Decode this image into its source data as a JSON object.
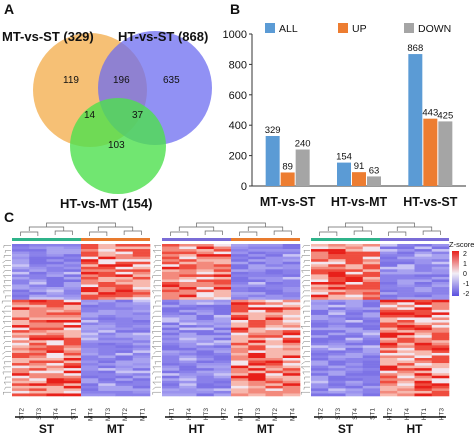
{
  "panels": {
    "a": "A",
    "b": "B",
    "c": "C"
  },
  "venn": {
    "sets": [
      {
        "label": "MT-vs-ST (329)",
        "color": "#f5b55d"
      },
      {
        "label": "HT-vs-ST (868)",
        "color": "#6c6cf0"
      },
      {
        "label": "HT-vs-MT (154)",
        "color": "#52e052"
      }
    ],
    "regions": {
      "mt_only": "119",
      "mt_ht": "196",
      "ht_only": "635",
      "mt_mt2": "14",
      "ht_mt2": "37",
      "mt2_only": "103"
    }
  },
  "chart_data": {
    "type": "bar",
    "categories": [
      "MT-vs-ST",
      "HT-vs-MT",
      "HT-vs-ST"
    ],
    "series": [
      {
        "name": "ALL",
        "color": "#5b9bd5",
        "values": [
          329,
          154,
          868
        ]
      },
      {
        "name": "UP",
        "color": "#ed7d31",
        "values": [
          89,
          91,
          443
        ]
      },
      {
        "name": "DOWN",
        "color": "#a5a5a5",
        "values": [
          240,
          63,
          425
        ]
      }
    ],
    "data_labels": [
      [
        "329",
        "89",
        "240"
      ],
      [
        "154",
        "91",
        "63"
      ],
      [
        "868",
        "443",
        "425"
      ]
    ],
    "ylim": [
      0,
      1000
    ],
    "yticks": [
      "0",
      "200",
      "400",
      "600",
      "800",
      "1000"
    ],
    "ytick_values": [
      0,
      200,
      400,
      600,
      800,
      1000
    ],
    "legend_position": "top",
    "grid": false
  },
  "heatmaps": {
    "legend_title": "Z-score",
    "legend_ticks": [
      "2",
      "1",
      "0",
      "-1",
      "-2"
    ],
    "blocks": [
      {
        "samples": [
          "ST2",
          "ST3",
          "ST4",
          "ST1",
          "MT4",
          "MT3",
          "MT2",
          "MT1"
        ],
        "groups": [
          "ST",
          "MT"
        ]
      },
      {
        "samples": [
          "HT1",
          "HT4",
          "HT3",
          "HT2",
          "MT1",
          "MT3",
          "MT2",
          "MT4"
        ],
        "groups": [
          "HT",
          "MT"
        ]
      },
      {
        "samples": [
          "ST2",
          "ST3",
          "ST4",
          "ST1",
          "HT2",
          "HT4",
          "HT1",
          "HT3"
        ],
        "groups": [
          "ST",
          "HT"
        ]
      }
    ]
  }
}
